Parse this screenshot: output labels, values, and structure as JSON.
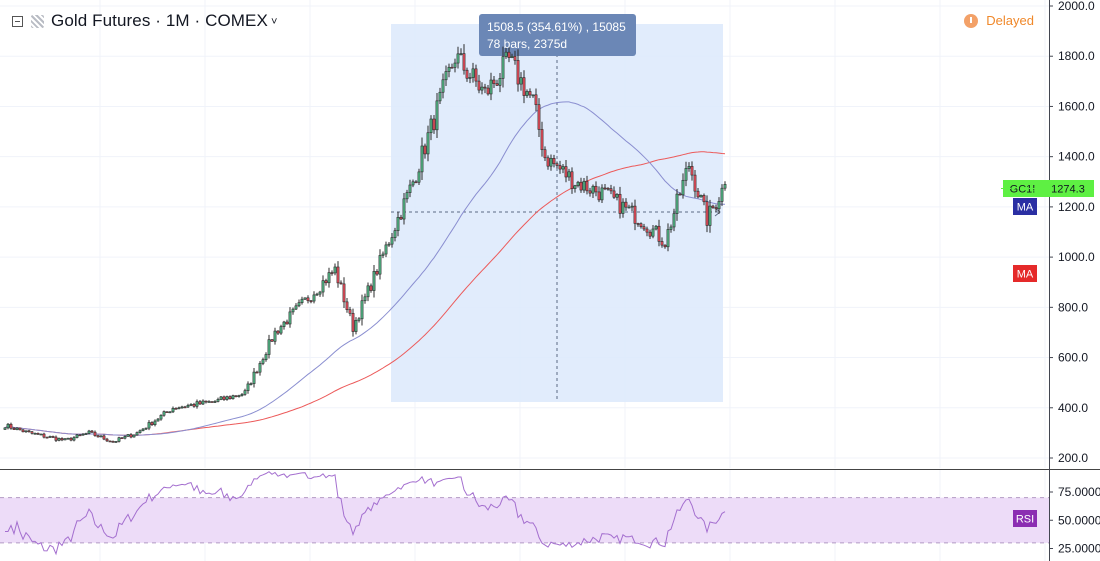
{
  "header": {
    "title": "Gold Futures · 1M · COMEX",
    "caret": "˅",
    "delayed": "Delayed",
    "delayed_color": "#f0882a"
  },
  "measurement": {
    "line1": "1508.5 (354.61%) , 15085",
    "line2": "78 bars, 2375d"
  },
  "chart_data": {
    "type": "candlestick",
    "price_axis": {
      "ylim": [
        160,
        2000
      ],
      "ticks": [
        "2000.0",
        "1800.0",
        "1600.0",
        "1400.0",
        "1200.0",
        "1000.0",
        "800.0",
        "600.0",
        "400.0",
        "200.0"
      ]
    },
    "rsi_axis": {
      "ylim": [
        8,
        93
      ],
      "ticks": [
        "75.0000",
        "50.0000",
        "25.0000"
      ],
      "band": [
        30,
        70
      ]
    },
    "symbol_label": "GC1!",
    "last_price": "1274.3",
    "ma_fast_label": "MA",
    "ma_slow_label": "MA",
    "rsi_label": "RSI",
    "colors": {
      "up": "#53b987",
      "down": "#eb4d5c",
      "ma_fast": "#8a8ed0",
      "ma_slow": "#ec5a5a",
      "rsi": "#a46fcf",
      "last": "#5ef043"
    },
    "anchors": [
      [
        0,
        330
      ],
      [
        8,
        300
      ],
      [
        20,
        270
      ],
      [
        28,
        300
      ],
      [
        36,
        265
      ],
      [
        44,
        300
      ],
      [
        56,
        400
      ],
      [
        70,
        425
      ],
      [
        80,
        460
      ],
      [
        90,
        700
      ],
      [
        102,
        850
      ],
      [
        110,
        950
      ],
      [
        116,
        720
      ],
      [
        124,
        950
      ],
      [
        136,
        1300
      ],
      [
        150,
        1800
      ],
      [
        160,
        1650
      ],
      [
        168,
        1780
      ],
      [
        176,
        1620
      ],
      [
        180,
        1400
      ],
      [
        190,
        1300
      ],
      [
        200,
        1250
      ],
      [
        212,
        1150
      ],
      [
        220,
        1060
      ],
      [
        228,
        1370
      ],
      [
        234,
        1150
      ],
      [
        240,
        1290
      ]
    ],
    "bars": 241
  }
}
